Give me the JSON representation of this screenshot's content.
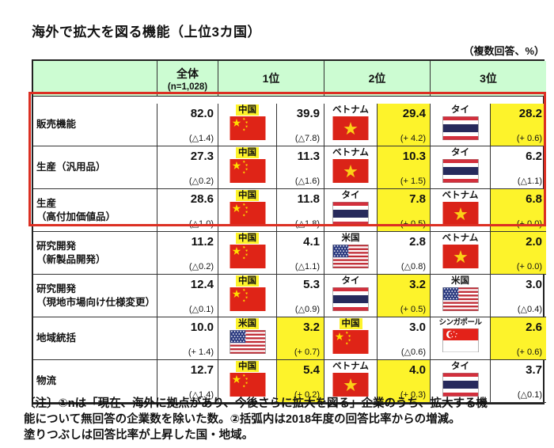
{
  "title": "海外で拡大を図る機能（上位3カ国）",
  "unit_note": "（複数回答、%）",
  "colors": {
    "header_bg": "#ccfcd2",
    "highlight_yellow": "#fdf32b",
    "red_box_border": "#dc2f23"
  },
  "table": {
    "headers": {
      "overall": "全体",
      "overall_sub": "(n=1,028)",
      "rank1": "1位",
      "rank2": "2位",
      "rank3": "3位"
    },
    "rows": [
      {
        "label": "販売機能",
        "overall": {
          "value": "82.0",
          "change": "(△1.4)"
        },
        "ranks": [
          {
            "country": "中国",
            "flag": "cn",
            "label_highlight": true,
            "value": "39.9",
            "change": "(△7.8)",
            "value_highlight": false
          },
          {
            "country": "ベトナム",
            "flag": "vn",
            "label_highlight": false,
            "value": "29.4",
            "change": "(+ 4.2)",
            "value_highlight": true
          },
          {
            "country": "タイ",
            "flag": "th",
            "label_highlight": false,
            "value": "28.2",
            "change": "(+ 0.6)",
            "value_highlight": true
          }
        ]
      },
      {
        "label": "生産（汎用品）",
        "overall": {
          "value": "27.3",
          "change": "(△0.2)"
        },
        "ranks": [
          {
            "country": "中国",
            "flag": "cn",
            "label_highlight": true,
            "value": "11.3",
            "change": "(△1.6)",
            "value_highlight": false
          },
          {
            "country": "ベトナム",
            "flag": "vn",
            "label_highlight": false,
            "value": "10.3",
            "change": "(+ 1.5)",
            "value_highlight": true
          },
          {
            "country": "タイ",
            "flag": "th",
            "label_highlight": false,
            "value": "6.2",
            "change": "(△1.1)",
            "value_highlight": false
          }
        ]
      },
      {
        "label": "生産\n（高付加価値品）",
        "overall": {
          "value": "28.6",
          "change": "(△1.0)"
        },
        "ranks": [
          {
            "country": "中国",
            "flag": "cn",
            "label_highlight": true,
            "value": "11.8",
            "change": "(△1.8)",
            "value_highlight": false
          },
          {
            "country": "タイ",
            "flag": "th",
            "label_highlight": false,
            "value": "7.8",
            "change": "(+ 0.5)",
            "value_highlight": true
          },
          {
            "country": "ベトナム",
            "flag": "vn",
            "label_highlight": false,
            "value": "6.8",
            "change": "(+ 0.0)",
            "value_highlight": true
          }
        ]
      },
      {
        "label": "研究開発\n（新製品開発）",
        "overall": {
          "value": "11.2",
          "change": "(△0.2)"
        },
        "ranks": [
          {
            "country": "中国",
            "flag": "cn",
            "label_highlight": true,
            "value": "4.1",
            "change": "(△1.1)",
            "value_highlight": false
          },
          {
            "country": "米国",
            "flag": "us",
            "label_highlight": false,
            "value": "2.8",
            "change": "(△0.8)",
            "value_highlight": false
          },
          {
            "country": "ベトナム",
            "flag": "vn",
            "label_highlight": false,
            "value": "2.0",
            "change": "(+ 0.0)",
            "value_highlight": true
          }
        ]
      },
      {
        "label": "研究開発\n（現地市場向け仕様変更）",
        "overall": {
          "value": "12.4",
          "change": "(△0.1)"
        },
        "ranks": [
          {
            "country": "中国",
            "flag": "cn",
            "label_highlight": true,
            "value": "5.3",
            "change": "(△0.9)",
            "value_highlight": false
          },
          {
            "country": "タイ",
            "flag": "th",
            "label_highlight": false,
            "value": "3.2",
            "change": "(+ 0.5)",
            "value_highlight": true
          },
          {
            "country": "米国",
            "flag": "us",
            "label_highlight": false,
            "value": "3.0",
            "change": "(△0.4)",
            "value_highlight": false
          }
        ]
      },
      {
        "label": "地域統括",
        "overall": {
          "value": "10.0",
          "change": "(+ 1.4)"
        },
        "ranks": [
          {
            "country": "米国",
            "flag": "us",
            "label_highlight": true,
            "value": "3.2",
            "change": "(+ 0.7)",
            "value_highlight": true
          },
          {
            "country": "中国",
            "flag": "cn",
            "label_highlight": true,
            "value": "3.0",
            "change": "(△0.6)",
            "value_highlight": false
          },
          {
            "country": "シンガポール",
            "flag": "sg",
            "label_highlight": false,
            "value": "2.6",
            "change": "(+ 0.6)",
            "value_highlight": true
          }
        ]
      },
      {
        "label": "物流",
        "overall": {
          "value": "12.7",
          "change": "(△1.4)"
        },
        "ranks": [
          {
            "country": "中国",
            "flag": "cn",
            "label_highlight": true,
            "value": "5.4",
            "change": "(+ 0.2)",
            "value_highlight": true
          },
          {
            "country": "ベトナム",
            "flag": "vn",
            "label_highlight": false,
            "value": "4.0",
            "change": "(+ 0.3)",
            "value_highlight": true
          },
          {
            "country": "タイ",
            "flag": "th",
            "label_highlight": false,
            "value": "3.7",
            "change": "(△0.1)",
            "value_highlight": false
          }
        ]
      }
    ]
  },
  "footnote_lines": [
    "〔注〕①nは「現在、海外に拠点があり、今後さらに拡大を図る」企業のうち、拡大する機",
    "能について無回答の企業数を除いた数。②括弧内は2018年度の回答比率からの増減。",
    "塗りつぶしは回答比率が上昇した国・地域。"
  ]
}
